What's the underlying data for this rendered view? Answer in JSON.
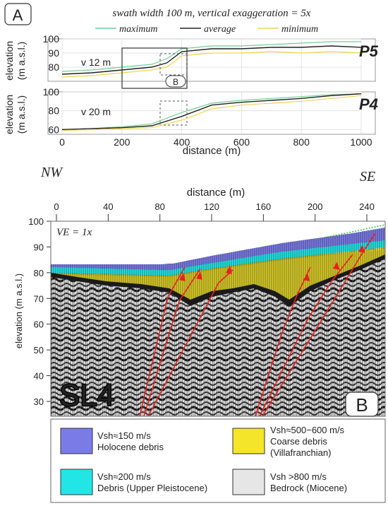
{
  "panel_a": {
    "label": "A",
    "caption": "swath width 100 m, vertical exaggeration = 5x",
    "legend": [
      {
        "name": "maximum",
        "color": "#6fcf97"
      },
      {
        "name": "average",
        "color": "#222222"
      },
      {
        "name": "minimum",
        "color": "#f2d44c"
      }
    ],
    "ylabel": "elevation\n(m a.s.l.)",
    "xlabel": "distance (m)",
    "box_label": "B"
  },
  "panel_b": {
    "label": "B",
    "nw": "NW",
    "se": "SE",
    "ve": "VE = 1x",
    "section": "SL4",
    "xlabel": "distance (m)",
    "ylabel": "elevation (m a.s.l.)",
    "xticks": [
      "0",
      "40",
      "80",
      "120",
      "160",
      "200",
      "240"
    ],
    "yticks": [
      "100",
      "90",
      "80",
      "70",
      "60",
      "50",
      "40",
      "30"
    ]
  },
  "legend_b": [
    {
      "l1": "Vsh≈150 m/s",
      "l2": "Holocene debris",
      "color": "#7b7be8"
    },
    {
      "l1": "Vsh≈500−600 m/s",
      "l2": "Coarse debris",
      "l3": "(Villafranchian)",
      "color": "#f5e52a"
    },
    {
      "l1": "Vsh≈200 m/s",
      "l2": "Debris (Upper Pleistocene)",
      "color": "#22e6e6"
    },
    {
      "l1": "Vsh >800 m/s",
      "l2": "Bedrock (Miocene)",
      "color": "#e6e6e6"
    }
  ],
  "chart_data": [
    {
      "type": "line",
      "profile": "P5",
      "annotation": "v 12 m",
      "xlabel": "distance (m)",
      "ylabel": "elevation (m a.s.l.)",
      "xlim": [
        0,
        1000
      ],
      "ylim": [
        70,
        100
      ],
      "yticks": [
        80,
        90,
        100
      ],
      "x": [
        0,
        100,
        200,
        300,
        350,
        400,
        500,
        600,
        700,
        800,
        900,
        1000
      ],
      "series": [
        {
          "name": "maximum",
          "values": [
            77,
            78,
            80,
            82,
            86,
            93,
            95,
            95,
            96,
            97,
            98,
            98
          ]
        },
        {
          "name": "average",
          "values": [
            75,
            76,
            78,
            80,
            83,
            91,
            93,
            93,
            94,
            94,
            95,
            94
          ]
        },
        {
          "name": "minimum",
          "values": [
            73,
            74,
            76,
            78,
            80,
            88,
            90,
            90,
            91,
            90,
            91,
            90
          ]
        }
      ]
    },
    {
      "type": "line",
      "profile": "P4",
      "annotation": "v 20 m",
      "xlabel": "distance (m)",
      "ylabel": "elevation (m a.s.l.)",
      "xlim": [
        0,
        1000
      ],
      "ylim": [
        55,
        100
      ],
      "yticks": [
        60,
        80,
        100
      ],
      "xticks": [
        0,
        200,
        400,
        600,
        800,
        1000
      ],
      "x": [
        0,
        100,
        200,
        300,
        400,
        500,
        600,
        700,
        800,
        900,
        1000
      ],
      "series": [
        {
          "name": "maximum",
          "values": [
            60,
            61,
            63,
            66,
            78,
            88,
            91,
            93,
            95,
            97,
            98
          ]
        },
        {
          "name": "average",
          "values": [
            60,
            61,
            62,
            64,
            74,
            86,
            89,
            91,
            93,
            96,
            98
          ]
        },
        {
          "name": "minimum",
          "values": [
            59,
            60,
            61,
            62,
            70,
            82,
            86,
            88,
            90,
            93,
            96
          ]
        }
      ]
    }
  ]
}
